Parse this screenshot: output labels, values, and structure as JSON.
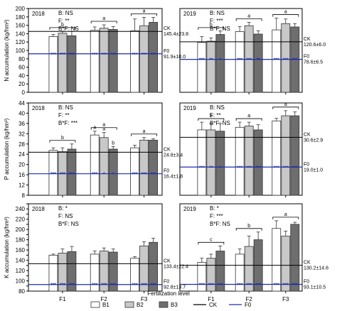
{
  "figure": {
    "xlabel": "Fertilization level",
    "categories": [
      "F1",
      "F2",
      "F3"
    ],
    "legend": [
      {
        "key": "B1",
        "label": "B1",
        "kind": "bar",
        "color": "#ffffff"
      },
      {
        "key": "B2",
        "label": "B2",
        "kind": "bar",
        "color": "#c8c8c8"
      },
      {
        "key": "B3",
        "label": "B3",
        "kind": "bar",
        "color": "#6e6e6e"
      },
      {
        "key": "CK",
        "label": "CK",
        "kind": "line",
        "color": "#000000"
      },
      {
        "key": "F0",
        "label": "F0",
        "kind": "line",
        "color": "#1f2ea8"
      }
    ],
    "colors": {
      "ck": "#000000",
      "f0": "#1f2ea8",
      "bar_edge": "#333333"
    }
  },
  "chart_data": [
    {
      "type": "bar",
      "year": "2018",
      "ylabel": "N accumulation (kg/hm²)",
      "ylim": [
        0,
        200
      ],
      "yticks": [
        "0",
        "20",
        "40",
        "60",
        "80",
        "100",
        "120",
        "140",
        "160",
        "180",
        "200"
      ],
      "stats": [
        "B: NS",
        "F: **",
        "B*F: NS"
      ],
      "categories": [
        "F1",
        "F2",
        "F3"
      ],
      "series": [
        {
          "name": "B1",
          "values": [
            133,
            148,
            147
          ],
          "errors": [
            5,
            8,
            28
          ]
        },
        {
          "name": "B2",
          "values": [
            141,
            153,
            159
          ],
          "errors": [
            5,
            8,
            20
          ]
        },
        {
          "name": "B3",
          "values": [
            135,
            150,
            167
          ],
          "errors": [
            10,
            7,
            12
          ]
        }
      ],
      "letters": [
        "b",
        "a",
        "a"
      ],
      "stars": [
        [
          "***",
          "***",
          "***"
        ],
        [
          "***",
          "***",
          "***"
        ],
        [
          "***",
          "***",
          "***"
        ]
      ],
      "ck": {
        "value": 145.4,
        "label": "CK",
        "text": "145.4±23.8"
      },
      "f0": {
        "value": 91.9,
        "label": "F0",
        "text": "91.9±10.0"
      }
    },
    {
      "type": "bar",
      "year": "2019",
      "ylabel": "",
      "ylim": [
        0,
        200
      ],
      "yticks": [],
      "stats": [
        "B: NS",
        "F: ***",
        "B*F: NS"
      ],
      "categories": [
        "F1",
        "F2",
        "F3"
      ],
      "series": [
        {
          "name": "B1",
          "values": [
            119,
            145,
            149
          ],
          "errors": [
            14,
            12,
            28
          ]
        },
        {
          "name": "B2",
          "values": [
            122,
            159,
            164
          ],
          "errors": [
            8,
            8,
            11
          ]
        },
        {
          "name": "B3",
          "values": [
            138,
            139,
            156
          ],
          "errors": [
            8,
            8,
            8
          ]
        }
      ],
      "letters": [
        "b",
        "a",
        "a"
      ],
      "stars": [
        [
          "***",
          "**",
          "*"
        ],
        [
          "***",
          "***",
          "**"
        ],
        [
          "***",
          "***",
          "***"
        ]
      ],
      "ck": {
        "value": 120.6,
        "label": "CK",
        "text": "120.6±6.0"
      },
      "f0": {
        "value": 78.6,
        "label": "F0",
        "text": "78.6±6.5"
      }
    },
    {
      "type": "bar",
      "year": "2018",
      "ylabel": "P accumulation (kg/hm²)",
      "ylim": [
        8,
        44
      ],
      "yticks": [
        "8",
        "12",
        "16",
        "20",
        "24",
        "28",
        "32",
        "36",
        "40",
        "44"
      ],
      "stats": [
        "B: NS",
        "F: **",
        "B*F: ***"
      ],
      "categories": [
        "F1",
        "F2",
        "F3"
      ],
      "series": [
        {
          "name": "B1",
          "values": [
            25.5,
            31.5,
            26.5
          ],
          "errors": [
            1,
            1.5,
            1
          ]
        },
        {
          "name": "B2",
          "values": [
            25.0,
            30.5,
            29.5
          ],
          "errors": [
            1.5,
            2,
            1
          ]
        },
        {
          "name": "B3",
          "values": [
            26.0,
            26.0,
            29.5
          ],
          "errors": [
            2,
            1,
            0.5
          ]
        }
      ],
      "letters": [
        "b",
        "a",
        "a"
      ],
      "pair_letters": [
        "a",
        "a",
        "b"
      ],
      "stars": [
        [
          "***",
          "***",
          "***"
        ],
        [
          "***",
          "*",
          "*"
        ],
        [
          "***",
          "***",
          "***"
        ]
      ],
      "ck": {
        "value": 24.8,
        "label": "CK",
        "text": "24.8±3.4"
      },
      "f0": {
        "value": 16.4,
        "label": "F0",
        "text": "16.4±1.8"
      }
    },
    {
      "type": "bar",
      "year": "2019",
      "ylabel": "",
      "ylim": [
        8,
        44
      ],
      "yticks": [],
      "stats": [
        "B: NS",
        "F: **",
        "B*F: NS"
      ],
      "categories": [
        "F1",
        "F2",
        "F3"
      ],
      "series": [
        {
          "name": "B1",
          "values": [
            33.5,
            34.5,
            37.0
          ],
          "errors": [
            3,
            2,
            1
          ]
        },
        {
          "name": "B2",
          "values": [
            33.5,
            35.0,
            39.0
          ],
          "errors": [
            2.5,
            1.5,
            2
          ]
        },
        {
          "name": "B3",
          "values": [
            33.0,
            33.5,
            39.0
          ],
          "errors": [
            3,
            2,
            1.5
          ]
        }
      ],
      "letters": [
        "b",
        "a",
        "a"
      ],
      "stars": [
        [
          "***",
          "**",
          "*"
        ],
        [
          "***",
          "***",
          "***"
        ],
        [
          "***",
          "***",
          "***"
        ]
      ],
      "ck": {
        "value": 30.6,
        "label": "CK",
        "text": "30.6±2.9"
      },
      "f0": {
        "value": 19.0,
        "label": "F0",
        "text": "19.0±1.0"
      }
    },
    {
      "type": "bar",
      "year": "2018",
      "ylabel": "K accumulation (kg/hm²)",
      "ylim": [
        80,
        250
      ],
      "yticks": [
        "80",
        "90",
        "100",
        "110",
        "120",
        "130",
        "140",
        "150",
        "160",
        "170",
        "180",
        "190",
        "200",
        "210",
        "220",
        "230",
        "240",
        "250"
      ],
      "stats": [
        "B: *",
        "F: NS",
        "B*F: NS"
      ],
      "categories": [
        "F1",
        "F2",
        "F3"
      ],
      "series": [
        {
          "name": "B1",
          "values": [
            150,
            152,
            144
          ],
          "errors": [
            2,
            6,
            3
          ]
        },
        {
          "name": "B2",
          "values": [
            154,
            158,
            168
          ],
          "errors": [
            8,
            6,
            8
          ]
        },
        {
          "name": "B3",
          "values": [
            157,
            156,
            175
          ],
          "errors": [
            10,
            6,
            8
          ]
        }
      ],
      "letters": [],
      "stars": [
        [
          "***",
          "***",
          "***"
        ],
        [
          "***",
          "***",
          "***"
        ],
        [
          "***",
          "***",
          "***"
        ]
      ],
      "ck": {
        "value": 133.4,
        "label": "CK",
        "text": "133.4±22.4"
      },
      "f0": {
        "value": 92.8,
        "label": "F0",
        "text": "92.8±13.7"
      }
    },
    {
      "type": "bar",
      "year": "2019",
      "ylabel": "",
      "ylim": [
        80,
        250
      ],
      "yticks": [],
      "stats": [
        "B: *",
        "F: ***",
        "B*F: NS"
      ],
      "categories": [
        "F1",
        "F2",
        "F3"
      ],
      "series": [
        {
          "name": "B1",
          "values": [
            136,
            152,
            202
          ],
          "errors": [
            8,
            10,
            15
          ]
        },
        {
          "name": "B2",
          "values": [
            144,
            167,
            187
          ],
          "errors": [
            8,
            20,
            10
          ]
        },
        {
          "name": "B3",
          "values": [
            158,
            180,
            210
          ],
          "errors": [
            10,
            15,
            4
          ]
        }
      ],
      "letters": [
        "c",
        "b",
        "a"
      ],
      "stars": [
        [
          "***",
          "***",
          "***"
        ],
        [
          "***",
          "***",
          "***"
        ],
        [
          "***",
          "***",
          "***"
        ]
      ],
      "ck": {
        "value": 130.2,
        "label": "CK",
        "text": "130.2±14.6"
      },
      "f0": {
        "value": 93.1,
        "label": "F0",
        "text": "93.1±10.5"
      }
    }
  ]
}
